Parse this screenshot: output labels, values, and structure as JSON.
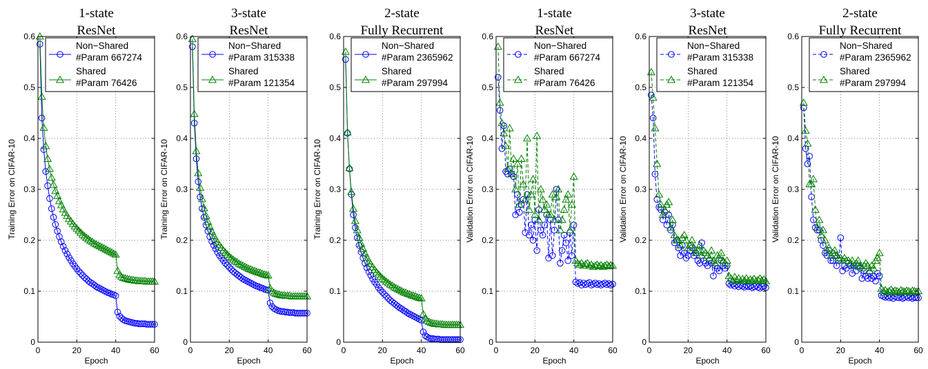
{
  "chart_data": [
    {
      "type": "line",
      "title": [
        "1-state",
        "ResNet"
      ],
      "xlabel": "Epoch",
      "ylabel": "Training Error on CIFAR-10",
      "xlim": [
        0,
        60
      ],
      "ylim": [
        0,
        0.6
      ],
      "xticks": [
        "0",
        "20",
        "40",
        "60"
      ],
      "yticks": [
        "0",
        "0.1",
        "0.2",
        "0.3",
        "0.4",
        "0.5",
        "0.6"
      ],
      "grid": true,
      "legend_position": "top-right",
      "series": [
        {
          "name": "Non−Shared",
          "param": "#Param 667274",
          "color": "#0000ff",
          "marker": "circle",
          "line": "solid",
          "values": [
            0.585,
            0.44,
            0.378,
            0.335,
            0.307,
            0.282,
            0.262,
            0.245,
            0.231,
            0.218,
            0.207,
            0.197,
            0.188,
            0.18,
            0.173,
            0.166,
            0.16,
            0.154,
            0.149,
            0.144,
            0.139,
            0.135,
            0.131,
            0.127,
            0.124,
            0.12,
            0.117,
            0.115,
            0.112,
            0.109,
            0.107,
            0.105,
            0.103,
            0.101,
            0.099,
            0.097,
            0.096,
            0.094,
            0.093,
            0.091,
            0.059,
            0.051,
            0.047,
            0.044,
            0.042,
            0.041,
            0.04,
            0.039,
            0.038,
            0.037,
            0.037,
            0.036,
            0.036,
            0.036,
            0.036,
            0.035,
            0.035,
            0.035,
            0.035,
            0.035
          ]
        },
        {
          "name": "Shared",
          "param": "#Param 76426",
          "color": "#008000",
          "marker": "triangle",
          "line": "solid",
          "values": [
            0.6,
            0.482,
            0.421,
            0.385,
            0.36,
            0.34,
            0.323,
            0.309,
            0.297,
            0.287,
            0.277,
            0.269,
            0.261,
            0.254,
            0.248,
            0.242,
            0.237,
            0.232,
            0.227,
            0.223,
            0.219,
            0.215,
            0.211,
            0.208,
            0.205,
            0.202,
            0.199,
            0.197,
            0.194,
            0.192,
            0.19,
            0.188,
            0.186,
            0.184,
            0.182,
            0.18,
            0.178,
            0.176,
            0.174,
            0.172,
            0.14,
            0.132,
            0.128,
            0.126,
            0.125,
            0.124,
            0.123,
            0.122,
            0.122,
            0.121,
            0.121,
            0.12,
            0.12,
            0.12,
            0.12,
            0.119,
            0.119,
            0.119,
            0.119,
            0.119
          ]
        }
      ]
    },
    {
      "type": "line",
      "title": [
        "3-state",
        "ResNet"
      ],
      "xlabel": "Epoch",
      "ylabel": "Training Error on CIFAR-10",
      "xlim": [
        0,
        60
      ],
      "ylim": [
        0,
        0.6
      ],
      "xticks": [
        "0",
        "20",
        "40",
        "60"
      ],
      "yticks": [
        "0",
        "0.1",
        "0.2",
        "0.3",
        "0.4",
        "0.5",
        "0.6"
      ],
      "grid": true,
      "legend_position": "top-right",
      "series": [
        {
          "name": "Non−Shared",
          "param": "#Param 315338",
          "color": "#0000ff",
          "marker": "circle",
          "line": "solid",
          "values": [
            0.58,
            0.43,
            0.36,
            0.315,
            0.285,
            0.262,
            0.245,
            0.23,
            0.218,
            0.207,
            0.198,
            0.19,
            0.183,
            0.176,
            0.17,
            0.165,
            0.16,
            0.155,
            0.151,
            0.147,
            0.143,
            0.139,
            0.136,
            0.133,
            0.13,
            0.127,
            0.124,
            0.122,
            0.12,
            0.118,
            0.116,
            0.114,
            0.112,
            0.11,
            0.109,
            0.107,
            0.106,
            0.104,
            0.103,
            0.102,
            0.077,
            0.07,
            0.066,
            0.064,
            0.062,
            0.061,
            0.06,
            0.06,
            0.059,
            0.059,
            0.058,
            0.058,
            0.058,
            0.057,
            0.057,
            0.057,
            0.057,
            0.057,
            0.057,
            0.057
          ]
        },
        {
          "name": "Shared",
          "param": "#Param 121354",
          "color": "#008000",
          "marker": "triangle",
          "line": "solid",
          "values": [
            0.595,
            0.448,
            0.375,
            0.332,
            0.303,
            0.281,
            0.263,
            0.248,
            0.236,
            0.226,
            0.217,
            0.209,
            0.202,
            0.196,
            0.19,
            0.185,
            0.18,
            0.176,
            0.172,
            0.168,
            0.165,
            0.162,
            0.159,
            0.157,
            0.154,
            0.152,
            0.15,
            0.148,
            0.146,
            0.144,
            0.143,
            0.141,
            0.14,
            0.138,
            0.137,
            0.136,
            0.134,
            0.133,
            0.132,
            0.131,
            0.106,
            0.1,
            0.097,
            0.095,
            0.094,
            0.093,
            0.092,
            0.092,
            0.091,
            0.091,
            0.091,
            0.09,
            0.09,
            0.09,
            0.09,
            0.09,
            0.09,
            0.09,
            0.09,
            0.09
          ]
        }
      ]
    },
    {
      "type": "line",
      "title": [
        "2-state",
        "Fully Recurrent"
      ],
      "xlabel": "Epoch",
      "ylabel": "Training Error on CIFAR-10",
      "xlim": [
        0,
        60
      ],
      "ylim": [
        0,
        0.6
      ],
      "xticks": [
        "0",
        "20",
        "40",
        "60"
      ],
      "yticks": [
        "0",
        "0.1",
        "0.2",
        "0.3",
        "0.4",
        "0.5",
        "0.6"
      ],
      "grid": true,
      "legend_position": "top-right",
      "series": [
        {
          "name": "Non−Shared",
          "param": "#Param 2365962",
          "color": "#0000ff",
          "marker": "circle",
          "line": "solid",
          "values": [
            0.555,
            0.41,
            0.34,
            0.29,
            0.25,
            0.225,
            0.205,
            0.19,
            0.177,
            0.165,
            0.155,
            0.146,
            0.138,
            0.131,
            0.124,
            0.118,
            0.113,
            0.107,
            0.102,
            0.098,
            0.094,
            0.09,
            0.086,
            0.082,
            0.079,
            0.076,
            0.073,
            0.07,
            0.067,
            0.065,
            0.062,
            0.06,
            0.057,
            0.055,
            0.053,
            0.051,
            0.049,
            0.047,
            0.045,
            0.043,
            0.02,
            0.013,
            0.01,
            0.008,
            0.007,
            0.007,
            0.006,
            0.006,
            0.006,
            0.005,
            0.005,
            0.005,
            0.005,
            0.005,
            0.005,
            0.005,
            0.005,
            0.005,
            0.005,
            0.005
          ]
        },
        {
          "name": "Shared",
          "param": "#Param 297994",
          "color": "#008000",
          "marker": "triangle",
          "line": "solid",
          "values": [
            0.57,
            0.412,
            0.342,
            0.295,
            0.262,
            0.238,
            0.22,
            0.205,
            0.193,
            0.183,
            0.174,
            0.166,
            0.159,
            0.153,
            0.147,
            0.142,
            0.137,
            0.133,
            0.129,
            0.125,
            0.122,
            0.119,
            0.116,
            0.113,
            0.111,
            0.108,
            0.106,
            0.104,
            0.102,
            0.1,
            0.098,
            0.097,
            0.095,
            0.094,
            0.092,
            0.091,
            0.09,
            0.088,
            0.087,
            0.086,
            0.055,
            0.046,
            0.042,
            0.04,
            0.038,
            0.037,
            0.036,
            0.036,
            0.035,
            0.035,
            0.035,
            0.034,
            0.034,
            0.034,
            0.034,
            0.034,
            0.034,
            0.034,
            0.034,
            0.034
          ]
        }
      ]
    },
    {
      "type": "line",
      "title": [
        "1-state",
        "ResNet"
      ],
      "xlabel": "Epoch",
      "ylabel": "Validation Error on CIFAR-10",
      "xlim": [
        0,
        60
      ],
      "ylim": [
        0,
        0.6
      ],
      "xticks": [
        "0",
        "20",
        "40",
        "60"
      ],
      "yticks": [
        "0",
        "0.1",
        "0.2",
        "0.3",
        "0.4",
        "0.5",
        "0.6"
      ],
      "grid": true,
      "legend_position": "top-right",
      "series": [
        {
          "name": "Non−Shared",
          "param": "#Param 667274",
          "color": "#0000ff",
          "marker": "circle",
          "line": "dashed",
          "values": [
            0.52,
            0.455,
            0.38,
            0.425,
            0.335,
            0.33,
            0.34,
            0.33,
            0.325,
            0.25,
            0.29,
            0.255,
            0.27,
            0.28,
            0.215,
            0.29,
            0.21,
            0.23,
            0.2,
            0.24,
            0.18,
            0.26,
            0.22,
            0.21,
            0.23,
            0.25,
            0.165,
            0.24,
            0.17,
            0.22,
            0.3,
            0.24,
            0.155,
            0.18,
            0.21,
            0.195,
            0.16,
            0.215,
            0.17,
            0.23,
            0.118,
            0.115,
            0.117,
            0.112,
            0.116,
            0.113,
            0.115,
            0.117,
            0.112,
            0.114,
            0.116,
            0.113,
            0.115,
            0.112,
            0.114,
            0.116,
            0.113,
            0.115,
            0.112,
            0.114
          ]
        },
        {
          "name": "Shared",
          "param": "#Param 76426",
          "color": "#008000",
          "marker": "triangle",
          "line": "dashed",
          "values": [
            0.58,
            0.47,
            0.43,
            0.41,
            0.385,
            0.34,
            0.42,
            0.33,
            0.36,
            0.3,
            0.35,
            0.27,
            0.36,
            0.31,
            0.28,
            0.4,
            0.26,
            0.29,
            0.32,
            0.25,
            0.405,
            0.24,
            0.3,
            0.28,
            0.26,
            0.27,
            0.25,
            0.25,
            0.29,
            0.24,
            0.285,
            0.3,
            0.22,
            0.24,
            0.26,
            0.28,
            0.29,
            0.22,
            0.27,
            0.325,
            0.16,
            0.155,
            0.152,
            0.155,
            0.15,
            0.153,
            0.155,
            0.15,
            0.152,
            0.148,
            0.15,
            0.152,
            0.149,
            0.151,
            0.148,
            0.15,
            0.152,
            0.149,
            0.151,
            0.15
          ]
        }
      ]
    },
    {
      "type": "line",
      "title": [
        "3-state",
        "ResNet"
      ],
      "xlabel": "Epoch",
      "ylabel": "Validation Error on CIFAR-10",
      "xlim": [
        0,
        60
      ],
      "ylim": [
        0,
        0.6
      ],
      "xticks": [
        "0",
        "20",
        "40",
        "60"
      ],
      "yticks": [
        "0",
        "0.1",
        "0.2",
        "0.3",
        "0.4",
        "0.5",
        "0.6"
      ],
      "grid": true,
      "legend_position": "top-right",
      "series": [
        {
          "name": "Non−Shared",
          "param": "#Param 315338",
          "color": "#0000ff",
          "marker": "circle",
          "line": "dashed",
          "values": [
            0.485,
            0.44,
            0.33,
            0.28,
            0.265,
            0.26,
            0.24,
            0.255,
            0.23,
            0.25,
            0.22,
            0.23,
            0.195,
            0.2,
            0.185,
            0.17,
            0.19,
            0.175,
            0.165,
            0.17,
            0.18,
            0.185,
            0.17,
            0.175,
            0.16,
            0.155,
            0.195,
            0.16,
            0.155,
            0.15,
            0.16,
            0.155,
            0.13,
            0.15,
            0.145,
            0.14,
            0.16,
            0.15,
            0.145,
            0.15,
            0.115,
            0.112,
            0.114,
            0.11,
            0.113,
            0.109,
            0.112,
            0.11,
            0.108,
            0.111,
            0.109,
            0.11,
            0.107,
            0.109,
            0.111,
            0.108,
            0.106,
            0.109,
            0.11,
            0.107
          ]
        },
        {
          "name": "Shared",
          "param": "#Param 121354",
          "color": "#008000",
          "marker": "triangle",
          "line": "dashed",
          "values": [
            0.53,
            0.48,
            0.42,
            0.35,
            0.29,
            0.27,
            0.25,
            0.26,
            0.27,
            0.275,
            0.225,
            0.24,
            0.21,
            0.2,
            0.2,
            0.19,
            0.205,
            0.21,
            0.2,
            0.185,
            0.19,
            0.2,
            0.185,
            0.175,
            0.18,
            0.19,
            0.17,
            0.18,
            0.175,
            0.17,
            0.165,
            0.18,
            0.16,
            0.155,
            0.17,
            0.165,
            0.175,
            0.16,
            0.155,
            0.16,
            0.13,
            0.125,
            0.12,
            0.128,
            0.122,
            0.125,
            0.12,
            0.124,
            0.121,
            0.125,
            0.12,
            0.123,
            0.121,
            0.124,
            0.12,
            0.122,
            0.125,
            0.121,
            0.123,
            0.12
          ]
        }
      ]
    },
    {
      "type": "line",
      "title": [
        "2-state",
        "Fully Recurrent"
      ],
      "xlabel": "Epoch",
      "ylabel": "Validation Error on CIFAR-10",
      "xlim": [
        0,
        60
      ],
      "ylim": [
        0,
        0.6
      ],
      "xticks": [
        "0",
        "20",
        "40",
        "60"
      ],
      "yticks": [
        "0",
        "0.1",
        "0.2",
        "0.3",
        "0.4",
        "0.5",
        "0.6"
      ],
      "grid": true,
      "legend_position": "top-right",
      "series": [
        {
          "name": "Non−Shared",
          "param": "#Param 2365962",
          "color": "#0000ff",
          "marker": "circle",
          "line": "dashed",
          "values": [
            0.46,
            0.38,
            0.35,
            0.365,
            0.285,
            0.24,
            0.225,
            0.22,
            0.22,
            0.2,
            0.19,
            0.175,
            0.17,
            0.18,
            0.16,
            0.16,
            0.17,
            0.15,
            0.16,
            0.205,
            0.14,
            0.15,
            0.145,
            0.155,
            0.15,
            0.135,
            0.15,
            0.14,
            0.15,
            0.145,
            0.125,
            0.14,
            0.13,
            0.125,
            0.135,
            0.125,
            0.13,
            0.12,
            0.135,
            0.13,
            0.092,
            0.09,
            0.088,
            0.09,
            0.087,
            0.089,
            0.086,
            0.09,
            0.088,
            0.087,
            0.089,
            0.086,
            0.088,
            0.09,
            0.087,
            0.089,
            0.086,
            0.088,
            0.087,
            0.087
          ]
        },
        {
          "name": "Shared",
          "param": "#Param 297994",
          "color": "#008000",
          "marker": "triangle",
          "line": "dashed",
          "values": [
            0.47,
            0.415,
            0.39,
            0.31,
            0.31,
            0.32,
            0.26,
            0.225,
            0.24,
            0.21,
            0.22,
            0.2,
            0.18,
            0.185,
            0.17,
            0.175,
            0.18,
            0.17,
            0.165,
            0.165,
            0.16,
            0.165,
            0.16,
            0.16,
            0.155,
            0.16,
            0.15,
            0.155,
            0.16,
            0.15,
            0.145,
            0.15,
            0.155,
            0.15,
            0.14,
            0.15,
            0.145,
            0.16,
            0.165,
            0.175,
            0.105,
            0.1,
            0.102,
            0.098,
            0.1,
            0.103,
            0.099,
            0.101,
            0.1,
            0.098,
            0.102,
            0.1,
            0.099,
            0.101,
            0.1,
            0.098,
            0.101,
            0.1,
            0.099,
            0.1
          ]
        }
      ]
    }
  ]
}
